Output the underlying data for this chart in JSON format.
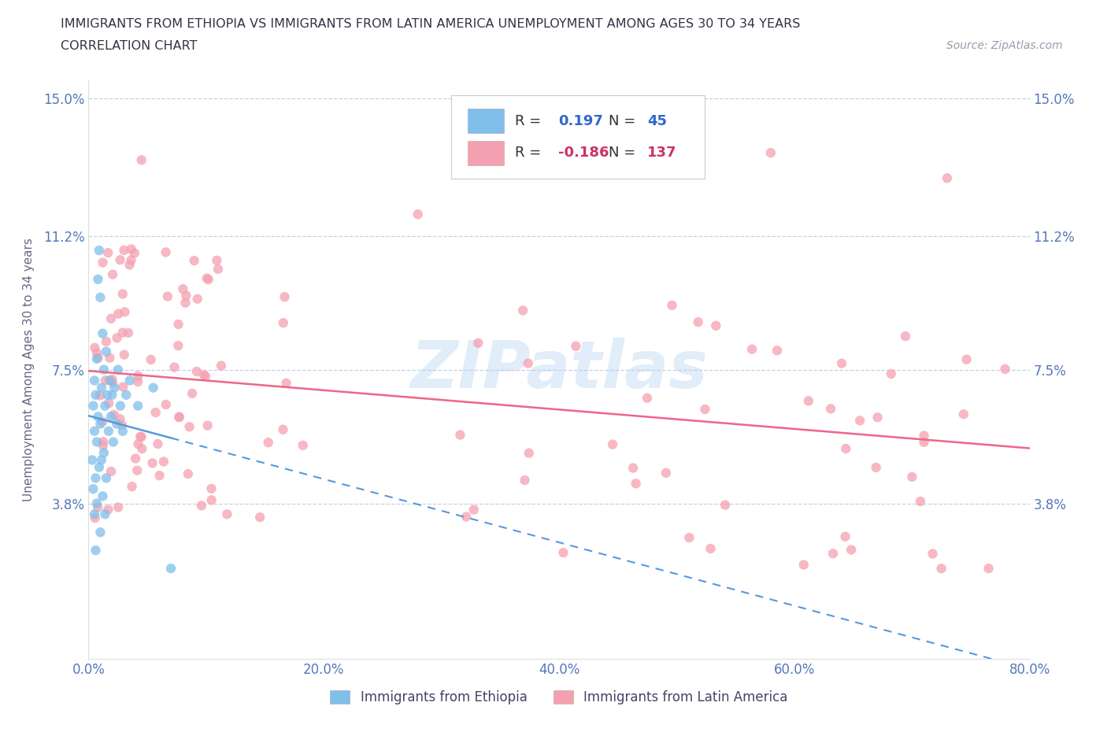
{
  "title_line1": "IMMIGRANTS FROM ETHIOPIA VS IMMIGRANTS FROM LATIN AMERICA UNEMPLOYMENT AMONG AGES 30 TO 34 YEARS",
  "title_line2": "CORRELATION CHART",
  "source_text": "Source: ZipAtlas.com",
  "ylabel": "Unemployment Among Ages 30 to 34 years",
  "xlim": [
    0,
    0.8
  ],
  "ylim": [
    -0.005,
    0.155
  ],
  "ytick_vals": [
    0.038,
    0.075,
    0.112,
    0.15
  ],
  "ytick_labels": [
    "3.8%",
    "7.5%",
    "11.2%",
    "15.0%"
  ],
  "xtick_vals": [
    0.0,
    0.2,
    0.4,
    0.6,
    0.8
  ],
  "xtick_labels": [
    "0.0%",
    "20.0%",
    "40.0%",
    "60.0%",
    "80.0%"
  ],
  "ethiopia_color": "#7fbfea",
  "latin_color": "#f5a0b0",
  "trend_ethiopia_color": "#5599dd",
  "trend_latin_color": "#ee6688",
  "watermark_text": "ZIPatlas",
  "watermark_color": "#aaccee",
  "watermark_alpha": 0.35,
  "background_color": "#ffffff",
  "grid_color": "#c8d0e8",
  "tick_color": "#5577bb",
  "ylabel_color": "#666688",
  "title_color": "#333344",
  "source_color": "#999aaa",
  "legend_r_color": "#333344",
  "legend_val_color": "#3366cc",
  "legend_n_color": "#333344",
  "legend_nval_color": "#3366cc"
}
